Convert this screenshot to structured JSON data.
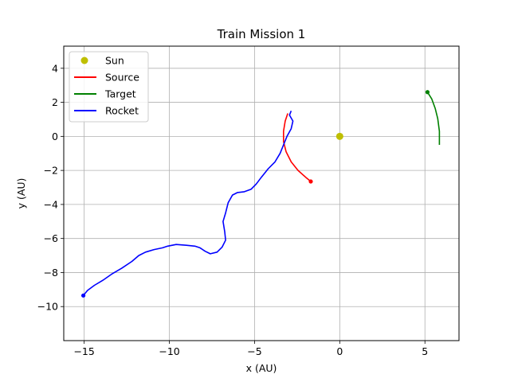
{
  "chart_data": {
    "type": "line",
    "title": "Train Mission 1",
    "xlabel": "x (AU)",
    "ylabel": "y (AU)",
    "xlim": [
      -16.2,
      7.0
    ],
    "ylim": [
      -12.0,
      5.3
    ],
    "xticks": [
      -15,
      -10,
      -5,
      0,
      5
    ],
    "yticks": [
      -10,
      -8,
      -6,
      -4,
      -2,
      0,
      2,
      4
    ],
    "grid": true,
    "legend_position": "upper-left",
    "legend": [
      "Sun",
      "Source",
      "Target",
      "Rocket"
    ],
    "series": [
      {
        "name": "Sun",
        "kind": "point",
        "color": "#bfbf00",
        "points": [
          [
            0,
            0
          ]
        ]
      },
      {
        "name": "Source",
        "kind": "line",
        "color": "#ff0000",
        "end_marker": "end",
        "points": [
          [
            -3.05,
            1.35
          ],
          [
            -3.2,
            0.9
          ],
          [
            -3.3,
            0.3
          ],
          [
            -3.3,
            -0.3
          ],
          [
            -3.15,
            -0.9
          ],
          [
            -2.85,
            -1.5
          ],
          [
            -2.45,
            -2.0
          ],
          [
            -2.0,
            -2.4
          ],
          [
            -1.7,
            -2.65
          ]
        ]
      },
      {
        "name": "Target",
        "kind": "line",
        "color": "#008000",
        "end_marker": "start",
        "points": [
          [
            5.15,
            2.6
          ],
          [
            5.4,
            2.2
          ],
          [
            5.6,
            1.65
          ],
          [
            5.75,
            1.05
          ],
          [
            5.85,
            0.3
          ],
          [
            5.85,
            -0.5
          ]
        ]
      },
      {
        "name": "Rocket",
        "kind": "line",
        "color": "#0000ff",
        "end_marker": "start",
        "points": [
          [
            -15.05,
            -9.35
          ],
          [
            -14.8,
            -9.05
          ],
          [
            -14.4,
            -8.75
          ],
          [
            -13.9,
            -8.45
          ],
          [
            -13.4,
            -8.1
          ],
          [
            -12.8,
            -7.75
          ],
          [
            -12.2,
            -7.35
          ],
          [
            -11.8,
            -7.0
          ],
          [
            -11.4,
            -6.8
          ],
          [
            -10.9,
            -6.65
          ],
          [
            -10.4,
            -6.55
          ],
          [
            -10.1,
            -6.45
          ],
          [
            -9.6,
            -6.35
          ],
          [
            -9.0,
            -6.4
          ],
          [
            -8.5,
            -6.45
          ],
          [
            -8.2,
            -6.55
          ],
          [
            -7.9,
            -6.75
          ],
          [
            -7.6,
            -6.9
          ],
          [
            -7.2,
            -6.8
          ],
          [
            -6.9,
            -6.5
          ],
          [
            -6.7,
            -6.1
          ],
          [
            -6.75,
            -5.6
          ],
          [
            -6.85,
            -5.0
          ],
          [
            -6.7,
            -4.5
          ],
          [
            -6.55,
            -3.9
          ],
          [
            -6.3,
            -3.45
          ],
          [
            -6.0,
            -3.3
          ],
          [
            -5.6,
            -3.25
          ],
          [
            -5.2,
            -3.1
          ],
          [
            -4.9,
            -2.8
          ],
          [
            -4.6,
            -2.4
          ],
          [
            -4.2,
            -1.9
          ],
          [
            -3.8,
            -1.5
          ],
          [
            -3.5,
            -1.0
          ],
          [
            -3.3,
            -0.5
          ],
          [
            -3.1,
            0.0
          ],
          [
            -2.85,
            0.45
          ],
          [
            -2.75,
            0.9
          ],
          [
            -2.95,
            1.25
          ],
          [
            -2.85,
            1.5
          ]
        ]
      }
    ]
  }
}
